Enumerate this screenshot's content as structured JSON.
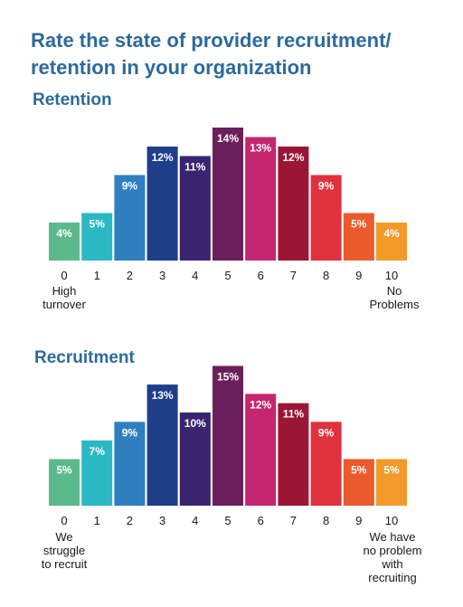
{
  "title_lines": [
    "Rate the state of provider recruitment/",
    "retention in your organization"
  ],
  "colors": [
    "#5cb98b",
    "#2ab8c4",
    "#2f7fc0",
    "#1f3e8a",
    "#3a2470",
    "#6b1f5c",
    "#c4276f",
    "#9b1636",
    "#e0323d",
    "#ea5a2c",
    "#f39a2b"
  ],
  "chart_data": [
    {
      "type": "bar",
      "title": "Retention",
      "categories": [
        "0",
        "1",
        "2",
        "3",
        "4",
        "5",
        "6",
        "7",
        "8",
        "9",
        "10"
      ],
      "values": [
        4,
        5,
        9,
        12,
        11,
        14,
        13,
        12,
        9,
        5,
        4
      ],
      "value_labels": [
        "4%",
        "5%",
        "9%",
        "12%",
        "11%",
        "14%",
        "13%",
        "12%",
        "9%",
        "5%",
        "4%"
      ],
      "low_end_label": "High\nturnover",
      "high_end_label": "No\nProblems"
    },
    {
      "type": "bar",
      "title": "Recruitment",
      "categories": [
        "0",
        "1",
        "2",
        "3",
        "4",
        "5",
        "6",
        "7",
        "8",
        "9",
        "10"
      ],
      "values": [
        5,
        7,
        9,
        13,
        10,
        15,
        12,
        11,
        9,
        5,
        5
      ],
      "value_labels": [
        "5%",
        "7%",
        "9%",
        "13%",
        "10%",
        "15%",
        "12%",
        "11%",
        "9%",
        "5%",
        "5%"
      ],
      "low_end_label": "We\nstruggle\nto recruit",
      "high_end_label": "We have\nno problem\nwith\nrecruiting"
    }
  ]
}
